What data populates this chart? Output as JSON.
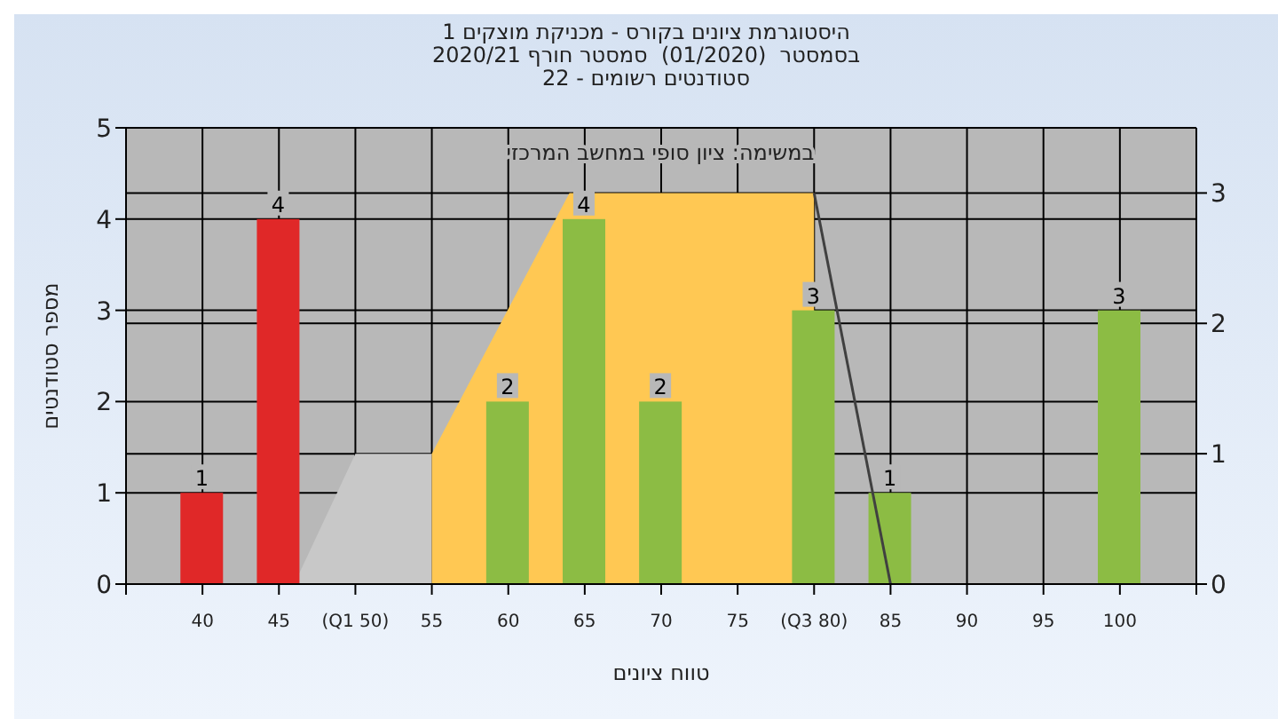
{
  "chart_data": {
    "type": "bar",
    "title": "היסטוגרמת ציונים בקורס - מכניקת מוצקים 1",
    "subtitle": "בסמסטר  (01/2020)  סמסטר חורף 2020/21\nסטודנטים רשומים - 22",
    "xlabel": "טווח ציונים",
    "ylabel": "מספר סטודנטים",
    "annotations": [
      "במשימה: ציון סופי במחשב המרכזי"
    ],
    "x": [
      40,
      45,
      60,
      65,
      70,
      80,
      85,
      100
    ],
    "series": [
      {
        "type": "area",
        "axis": "y2",
        "x": [
          46,
          50,
          55
        ],
        "values": [
          0,
          1,
          1
        ],
        "color": "#c8c8c8"
      },
      {
        "type": "area",
        "axis": "y2",
        "x": [
          55,
          64,
          80
        ],
        "values": [
          1,
          3,
          3
        ],
        "color": "#ffc853"
      },
      {
        "type": "line",
        "axis": "y2",
        "x": [
          80,
          85
        ],
        "values": [
          3,
          0
        ],
        "color": "#404040"
      },
      {
        "values": [
          1,
          4,
          2,
          4,
          2,
          3,
          1,
          3
        ],
        "value_labels": [
          "1",
          "4",
          "2",
          "4",
          "2",
          "3",
          "1",
          "3"
        ],
        "colors": [
          "#e02828",
          "#e02828",
          "#8cbc44",
          "#8cbc44",
          "#8cbc44",
          "#8cbc44",
          "#8cbc44",
          "#8cbc44"
        ]
      }
    ],
    "xlim": [
      35,
      105
    ],
    "xticks": [
      {
        "value": 35,
        "label": null
      },
      40,
      45,
      {
        "value": 50,
        "label": "(Q1 50)"
      },
      55,
      60,
      65,
      70,
      75,
      {
        "value": 80,
        "label": "(Q3 80)"
      },
      85,
      90,
      95,
      100,
      {
        "value": 105,
        "label": null
      }
    ],
    "ylim": [
      0,
      5
    ],
    "yticks": [
      0,
      1,
      2,
      3,
      4,
      5
    ],
    "y2lim": [
      0,
      3.5
    ],
    "y2ticks": [
      0,
      1,
      2,
      3
    ],
    "grid": true,
    "legend": false
  }
}
